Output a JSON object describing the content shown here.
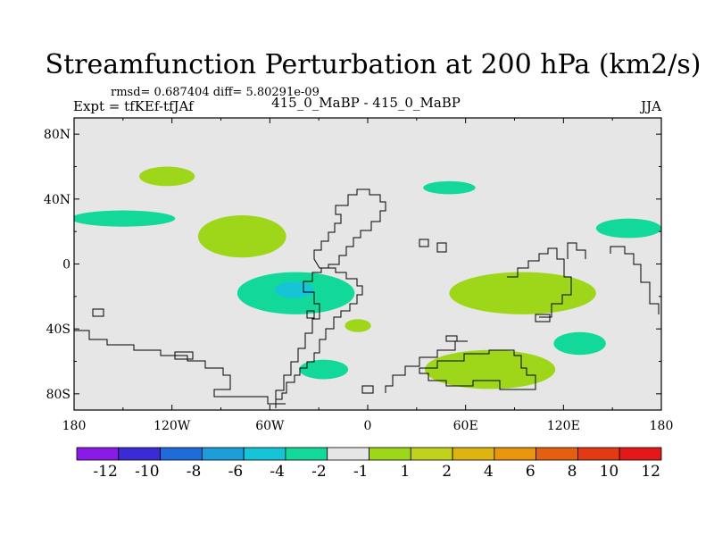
{
  "chart_data": {
    "type": "heatmap",
    "title": "Streamfunction Perturbation at 200 hPa (km2/s)",
    "stats": "rmsd= 0.687404 diff= 5.80291e-09",
    "left_label": "Expt = tfKEf-tfJAf",
    "center_label": "415_0_MaBP - 415_0_MaBP",
    "right_label": "JJA",
    "xlim": [
      -180,
      180
    ],
    "ylim": [
      -90,
      90
    ],
    "x_ticks": [
      {
        "value": -180,
        "label": "180"
      },
      {
        "value": -120,
        "label": "120W"
      },
      {
        "value": -60,
        "label": "60W"
      },
      {
        "value": 0,
        "label": "0"
      },
      {
        "value": 60,
        "label": "60E"
      },
      {
        "value": 120,
        "label": "120E"
      },
      {
        "value": 180,
        "label": "180"
      }
    ],
    "y_ticks": [
      {
        "value": 80,
        "label": "80N"
      },
      {
        "value": 40,
        "label": "40N"
      },
      {
        "value": 0,
        "label": "0"
      },
      {
        "value": -40,
        "label": "40S"
      },
      {
        "value": -80,
        "label": "80S"
      }
    ],
    "colorbar": {
      "colors": [
        "#8a1be6",
        "#3a2bd6",
        "#1f6bd8",
        "#1d9ed9",
        "#15c4d6",
        "#12d99a",
        "#e6e6e6",
        "#9ed61a",
        "#c2d21c",
        "#deb410",
        "#e7960e",
        "#e46010",
        "#e43a14",
        "#e41818"
      ],
      "labels": [
        "-12",
        "-10",
        "-8",
        "-6",
        "-4",
        "-2",
        "-1",
        "1",
        "2",
        "4",
        "6",
        "8",
        "10",
        "12"
      ]
    },
    "field_regions": [
      {
        "sign": "positive",
        "level": "1 to 2",
        "center_lon": -123,
        "center_lat": 54,
        "lon_radius": 17,
        "lat_radius": 6
      },
      {
        "sign": "negative",
        "level": "-2 to -1",
        "center_lon": -150,
        "center_lat": 28,
        "lon_radius": 32,
        "lat_radius": 5
      },
      {
        "sign": "positive",
        "level": "1 to 2",
        "center_lon": -77,
        "center_lat": 17,
        "lon_radius": 27,
        "lat_radius": 13
      },
      {
        "sign": "negative",
        "level": "-2 to -1",
        "center_lon": -44,
        "center_lat": -18,
        "lon_radius": 36,
        "lat_radius": 13
      },
      {
        "sign": "negative",
        "level": "-4 to -2",
        "center_lon": -45,
        "center_lat": -16,
        "lon_radius": 12,
        "lat_radius": 5
      },
      {
        "sign": "positive",
        "level": "1 to 2",
        "center_lon": -6,
        "center_lat": -38,
        "lon_radius": 8,
        "lat_radius": 4
      },
      {
        "sign": "negative",
        "level": "-2 to -1",
        "center_lon": -27,
        "center_lat": -65,
        "lon_radius": 15,
        "lat_radius": 6
      },
      {
        "sign": "negative",
        "level": "-2 to -1",
        "center_lon": 50,
        "center_lat": 47,
        "lon_radius": 16,
        "lat_radius": 4
      },
      {
        "sign": "negative",
        "level": "-2 to -1",
        "center_lon": 160,
        "center_lat": 22,
        "lon_radius": 20,
        "lat_radius": 6
      },
      {
        "sign": "positive",
        "level": "1 to 2",
        "center_lon": 95,
        "center_lat": -18,
        "lon_radius": 45,
        "lat_radius": 13
      },
      {
        "sign": "negative",
        "level": "-2 to -1",
        "center_lon": 130,
        "center_lat": -49,
        "lon_radius": 16,
        "lat_radius": 7
      },
      {
        "sign": "positive",
        "level": "1 to 2",
        "center_lon": 75,
        "center_lat": -65,
        "lon_radius": 40,
        "lat_radius": 12
      }
    ]
  }
}
